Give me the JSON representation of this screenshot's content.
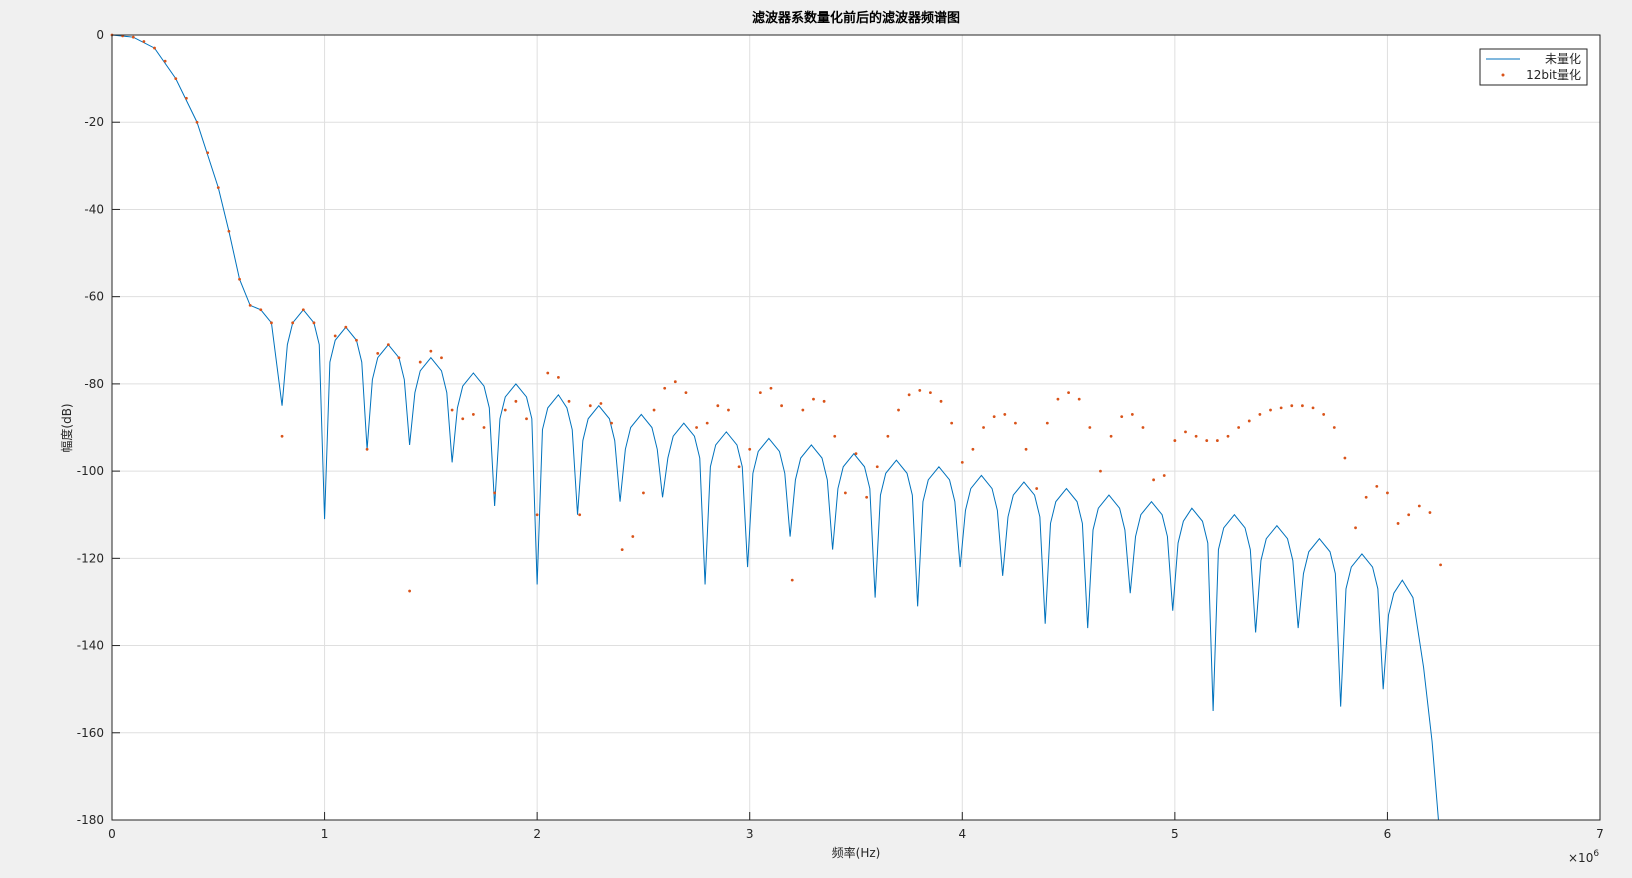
{
  "chart_data": {
    "type": "line",
    "title": "滤波器系数量化前后的滤波器频谱图",
    "x_label": "频率(Hz)",
    "y_label": "幅度(dB)",
    "x_multiplier_base": "×10",
    "x_multiplier_exp": "6",
    "xlim": [
      0,
      7
    ],
    "xticks": [
      0,
      1,
      2,
      3,
      4,
      5,
      6,
      7
    ],
    "ylim": [
      -180,
      0
    ],
    "yticks": [
      0,
      -20,
      -40,
      -60,
      -80,
      -100,
      -120,
      -140,
      -160,
      -180
    ],
    "grid": true,
    "legend_position": "northeast",
    "series": [
      {
        "name": "未量化",
        "color": "#0072BD",
        "style": "line",
        "x": [
          0,
          0.1,
          0.2,
          0.3,
          0.4,
          0.5,
          0.55,
          0.6,
          0.65,
          0.7,
          0.75,
          0.8,
          0.825,
          0.85,
          0.9,
          0.95,
          0.975,
          1.0,
          1.025,
          1.05,
          1.1,
          1.15,
          1.175,
          1.2,
          1.225,
          1.25,
          1.3,
          1.35,
          1.375,
          1.4,
          1.425,
          1.45,
          1.5,
          1.55,
          1.575,
          1.6,
          1.625,
          1.65,
          1.7,
          1.75,
          1.775,
          1.8,
          1.825,
          1.85,
          1.9,
          1.95,
          1.975,
          2.0,
          2.025,
          2.05,
          2.1,
          2.14,
          2.165,
          2.19,
          2.215,
          2.24,
          2.29,
          2.34,
          2.365,
          2.39,
          2.415,
          2.44,
          2.49,
          2.54,
          2.565,
          2.59,
          2.615,
          2.64,
          2.69,
          2.74,
          2.765,
          2.79,
          2.815,
          2.84,
          2.89,
          2.94,
          2.965,
          2.99,
          3.015,
          3.04,
          3.09,
          3.14,
          3.165,
          3.19,
          3.215,
          3.24,
          3.29,
          3.34,
          3.365,
          3.39,
          3.415,
          3.44,
          3.49,
          3.54,
          3.565,
          3.59,
          3.615,
          3.64,
          3.69,
          3.74,
          3.765,
          3.79,
          3.815,
          3.84,
          3.89,
          3.94,
          3.965,
          3.99,
          4.015,
          4.04,
          4.09,
          4.14,
          4.165,
          4.19,
          4.215,
          4.24,
          4.29,
          4.34,
          4.365,
          4.39,
          4.415,
          4.44,
          4.49,
          4.54,
          4.565,
          4.59,
          4.615,
          4.64,
          4.69,
          4.74,
          4.765,
          4.79,
          4.815,
          4.84,
          4.89,
          4.94,
          4.965,
          4.99,
          5.015,
          5.04,
          5.08,
          5.13,
          5.155,
          5.18,
          5.205,
          5.23,
          5.28,
          5.33,
          5.355,
          5.38,
          5.405,
          5.43,
          5.48,
          5.53,
          5.555,
          5.58,
          5.605,
          5.63,
          5.68,
          5.73,
          5.755,
          5.78,
          5.805,
          5.83,
          5.88,
          5.93,
          5.955,
          5.98,
          6.005,
          6.03,
          6.07,
          6.12,
          6.17,
          6.21,
          6.24
        ],
        "values": [
          0,
          -0.5,
          -3,
          -10,
          -20,
          -35,
          -45,
          -56,
          -62,
          -63,
          -66,
          -85,
          -71,
          -66,
          -63,
          -66,
          -71,
          -111,
          -75,
          -70,
          -67,
          -70,
          -75,
          -95,
          -79,
          -74,
          -71,
          -74,
          -79,
          -94,
          -82,
          -77,
          -74,
          -77,
          -82,
          -98,
          -85.5,
          -80.5,
          -77.5,
          -80.5,
          -85.5,
          -108,
          -88,
          -83,
          -80,
          -83,
          -88,
          -126,
          -90.5,
          -85.5,
          -82.5,
          -85.5,
          -90.5,
          -110,
          -93,
          -88,
          -85,
          -88,
          -93,
          -107,
          -95,
          -90,
          -87,
          -90,
          -95,
          -106,
          -97,
          -92,
          -89,
          -92,
          -97,
          -126,
          -99,
          -94,
          -91,
          -94,
          -99,
          -122,
          -100.5,
          -95.5,
          -92.5,
          -95.5,
          -100.5,
          -115,
          -102,
          -97,
          -94,
          -97,
          -102,
          -118,
          -104,
          -99,
          -96,
          -99,
          -104,
          -129,
          -105.5,
          -100.5,
          -97.5,
          -100.5,
          -105.5,
          -131,
          -107,
          -102,
          -99,
          -102,
          -107,
          -122,
          -109,
          -104,
          -101,
          -104,
          -109,
          -124,
          -110.5,
          -105.5,
          -102.5,
          -105.5,
          -110.5,
          -135,
          -112,
          -107,
          -104,
          -107,
          -112,
          -136,
          -113.5,
          -108.5,
          -105.5,
          -108.5,
          -113.5,
          -128,
          -115,
          -110,
          -107,
          -110,
          -115,
          -132,
          -116.5,
          -111.5,
          -108.5,
          -111.5,
          -116.5,
          -155,
          -118,
          -113,
          -110,
          -113,
          -118,
          -137,
          -120.5,
          -115.5,
          -112.5,
          -115.5,
          -120.5,
          -136,
          -123.5,
          -118.5,
          -115.5,
          -118.5,
          -123.5,
          -154,
          -127,
          -122,
          -119,
          -122,
          -127,
          -150,
          -133,
          -128,
          -125,
          -129,
          -145,
          -162,
          -180
        ]
      },
      {
        "name": "12bit量化",
        "color": "#D95319",
        "style": "dots",
        "x": [
          0,
          0.05,
          0.1,
          0.15,
          0.2,
          0.25,
          0.3,
          0.35,
          0.4,
          0.45,
          0.5,
          0.55,
          0.6,
          0.65,
          0.7,
          0.75,
          0.8,
          0.85,
          0.9,
          0.95,
          1.05,
          1.1,
          1.15,
          1.2,
          1.25,
          1.3,
          1.35,
          1.4,
          1.45,
          1.5,
          1.55,
          1.6,
          1.65,
          1.7,
          1.75,
          1.8,
          1.85,
          1.9,
          1.95,
          2.0,
          2.05,
          2.1,
          2.15,
          2.2,
          2.25,
          2.3,
          2.35,
          2.4,
          2.45,
          2.5,
          2.55,
          2.6,
          2.65,
          2.7,
          2.75,
          2.8,
          2.85,
          2.9,
          2.95,
          3.0,
          3.05,
          3.1,
          3.15,
          3.2,
          3.25,
          3.3,
          3.35,
          3.4,
          3.45,
          3.5,
          3.55,
          3.6,
          3.65,
          3.7,
          3.75,
          3.8,
          3.85,
          3.9,
          3.95,
          4.0,
          4.05,
          4.1,
          4.15,
          4.2,
          4.25,
          4.3,
          4.35,
          4.4,
          4.45,
          4.5,
          4.55,
          4.6,
          4.65,
          4.7,
          4.75,
          4.8,
          4.85,
          4.9,
          4.95,
          5.0,
          5.05,
          5.1,
          5.15,
          5.2,
          5.25,
          5.3,
          5.35,
          5.4,
          5.45,
          5.5,
          5.55,
          5.6,
          5.65,
          5.7,
          5.75,
          5.8,
          5.85,
          5.9,
          5.95,
          6.0,
          6.05,
          6.1,
          6.15,
          6.2,
          6.25
        ],
        "values": [
          0,
          -0.2,
          -0.5,
          -1.5,
          -3,
          -6,
          -10,
          -14.5,
          -20,
          -27,
          -35,
          -45,
          -56,
          -62,
          -63,
          -66,
          -92,
          -66,
          -63,
          -66,
          -69,
          -67,
          -70,
          -95,
          -73,
          -71,
          -74,
          -127.5,
          -75,
          -72.5,
          -74,
          -86,
          -88,
          -87,
          -90,
          -105,
          -86,
          -84,
          -88,
          -110,
          -77.5,
          -78.5,
          -84,
          -110,
          -85,
          -84.5,
          -89,
          -118,
          -115,
          -105,
          -86,
          -81,
          -79.5,
          -82,
          -90,
          -89,
          -85,
          -86,
          -99,
          -95,
          -82,
          -81,
          -85,
          -125,
          -86,
          -83.5,
          -84,
          -92,
          -105,
          -96,
          -106,
          -99,
          -92,
          -86,
          -82.5,
          -81.5,
          -82,
          -84,
          -89,
          -98,
          -95,
          -90,
          -87.5,
          -87,
          -89,
          -95,
          -104,
          -89,
          -83.5,
          -82,
          -83.5,
          -90,
          -100,
          -92,
          -87.5,
          -87,
          -90,
          -102,
          -101,
          -93,
          -91,
          -92,
          -93,
          -93,
          -92,
          -90,
          -88.5,
          -87,
          -86,
          -85.5,
          -85,
          -85,
          -85.5,
          -87,
          -90,
          -97,
          -113,
          -106,
          -103.5,
          -105,
          -112,
          -110,
          -108,
          -109.5,
          -121.5
        ]
      }
    ]
  }
}
